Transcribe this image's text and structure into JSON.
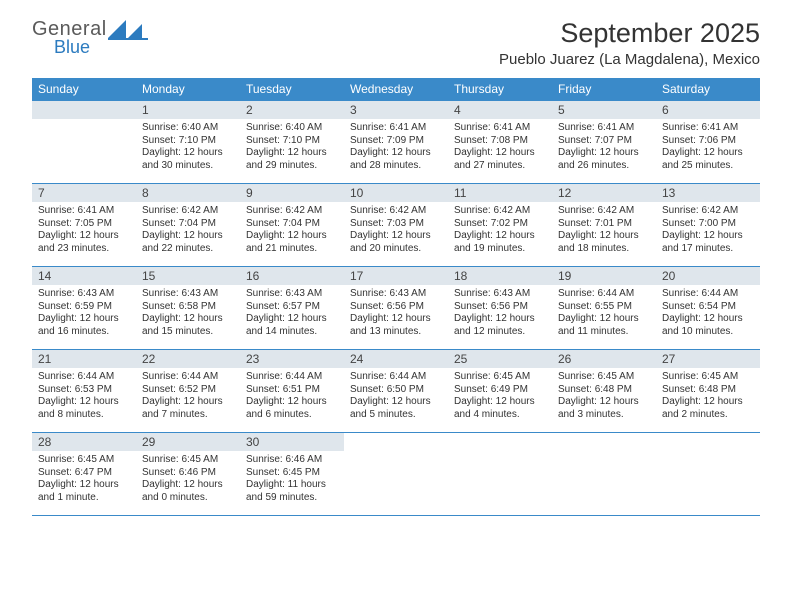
{
  "logo": {
    "text1": "General",
    "text2": "Blue"
  },
  "title": "September 2025",
  "location": "Pueblo Juarez (La Magdalena), Mexico",
  "dayNames": [
    "Sunday",
    "Monday",
    "Tuesday",
    "Wednesday",
    "Thursday",
    "Friday",
    "Saturday"
  ],
  "colors": {
    "headerBar": "#3a8ac9",
    "dayNumBar": "#dfe6ec",
    "logoBlue": "#2c7bbf",
    "logoGray": "#5a5a5a"
  },
  "weeks": [
    [
      null,
      {
        "n": "1",
        "sr": "6:40 AM",
        "ss": "7:10 PM",
        "dl": "12 hours and 30 minutes."
      },
      {
        "n": "2",
        "sr": "6:40 AM",
        "ss": "7:10 PM",
        "dl": "12 hours and 29 minutes."
      },
      {
        "n": "3",
        "sr": "6:41 AM",
        "ss": "7:09 PM",
        "dl": "12 hours and 28 minutes."
      },
      {
        "n": "4",
        "sr": "6:41 AM",
        "ss": "7:08 PM",
        "dl": "12 hours and 27 minutes."
      },
      {
        "n": "5",
        "sr": "6:41 AM",
        "ss": "7:07 PM",
        "dl": "12 hours and 26 minutes."
      },
      {
        "n": "6",
        "sr": "6:41 AM",
        "ss": "7:06 PM",
        "dl": "12 hours and 25 minutes."
      }
    ],
    [
      {
        "n": "7",
        "sr": "6:41 AM",
        "ss": "7:05 PM",
        "dl": "12 hours and 23 minutes."
      },
      {
        "n": "8",
        "sr": "6:42 AM",
        "ss": "7:04 PM",
        "dl": "12 hours and 22 minutes."
      },
      {
        "n": "9",
        "sr": "6:42 AM",
        "ss": "7:04 PM",
        "dl": "12 hours and 21 minutes."
      },
      {
        "n": "10",
        "sr": "6:42 AM",
        "ss": "7:03 PM",
        "dl": "12 hours and 20 minutes."
      },
      {
        "n": "11",
        "sr": "6:42 AM",
        "ss": "7:02 PM",
        "dl": "12 hours and 19 minutes."
      },
      {
        "n": "12",
        "sr": "6:42 AM",
        "ss": "7:01 PM",
        "dl": "12 hours and 18 minutes."
      },
      {
        "n": "13",
        "sr": "6:42 AM",
        "ss": "7:00 PM",
        "dl": "12 hours and 17 minutes."
      }
    ],
    [
      {
        "n": "14",
        "sr": "6:43 AM",
        "ss": "6:59 PM",
        "dl": "12 hours and 16 minutes."
      },
      {
        "n": "15",
        "sr": "6:43 AM",
        "ss": "6:58 PM",
        "dl": "12 hours and 15 minutes."
      },
      {
        "n": "16",
        "sr": "6:43 AM",
        "ss": "6:57 PM",
        "dl": "12 hours and 14 minutes."
      },
      {
        "n": "17",
        "sr": "6:43 AM",
        "ss": "6:56 PM",
        "dl": "12 hours and 13 minutes."
      },
      {
        "n": "18",
        "sr": "6:43 AM",
        "ss": "6:56 PM",
        "dl": "12 hours and 12 minutes."
      },
      {
        "n": "19",
        "sr": "6:44 AM",
        "ss": "6:55 PM",
        "dl": "12 hours and 11 minutes."
      },
      {
        "n": "20",
        "sr": "6:44 AM",
        "ss": "6:54 PM",
        "dl": "12 hours and 10 minutes."
      }
    ],
    [
      {
        "n": "21",
        "sr": "6:44 AM",
        "ss": "6:53 PM",
        "dl": "12 hours and 8 minutes."
      },
      {
        "n": "22",
        "sr": "6:44 AM",
        "ss": "6:52 PM",
        "dl": "12 hours and 7 minutes."
      },
      {
        "n": "23",
        "sr": "6:44 AM",
        "ss": "6:51 PM",
        "dl": "12 hours and 6 minutes."
      },
      {
        "n": "24",
        "sr": "6:44 AM",
        "ss": "6:50 PM",
        "dl": "12 hours and 5 minutes."
      },
      {
        "n": "25",
        "sr": "6:45 AM",
        "ss": "6:49 PM",
        "dl": "12 hours and 4 minutes."
      },
      {
        "n": "26",
        "sr": "6:45 AM",
        "ss": "6:48 PM",
        "dl": "12 hours and 3 minutes."
      },
      {
        "n": "27",
        "sr": "6:45 AM",
        "ss": "6:48 PM",
        "dl": "12 hours and 2 minutes."
      }
    ],
    [
      {
        "n": "28",
        "sr": "6:45 AM",
        "ss": "6:47 PM",
        "dl": "12 hours and 1 minute."
      },
      {
        "n": "29",
        "sr": "6:45 AM",
        "ss": "6:46 PM",
        "dl": "12 hours and 0 minutes."
      },
      {
        "n": "30",
        "sr": "6:46 AM",
        "ss": "6:45 PM",
        "dl": "11 hours and 59 minutes."
      },
      null,
      null,
      null,
      null
    ]
  ],
  "labels": {
    "sunrise": "Sunrise:",
    "sunset": "Sunset:",
    "daylight": "Daylight:"
  }
}
